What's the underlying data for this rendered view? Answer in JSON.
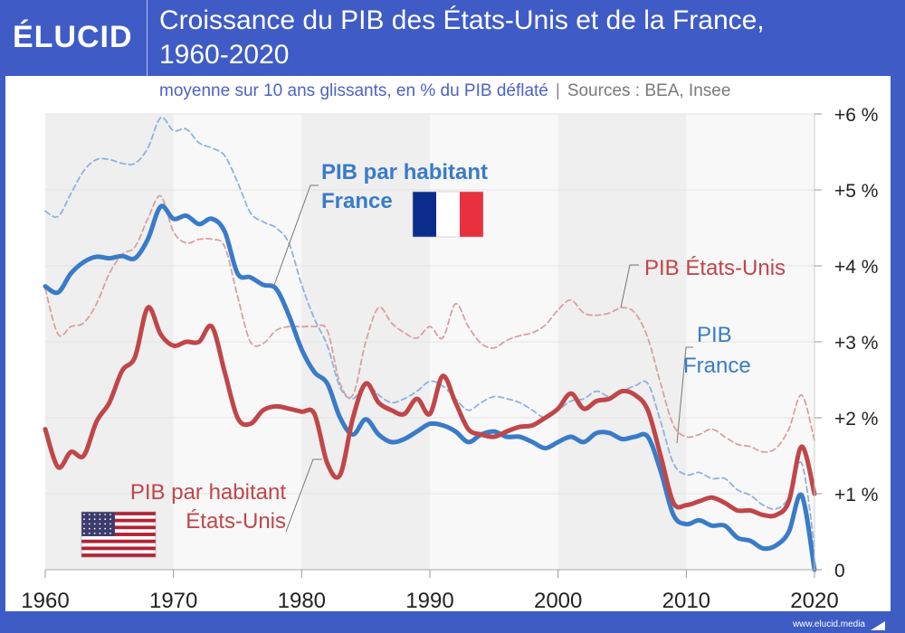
{
  "header": {
    "logo": "ÉLUCID",
    "title_line1": "Croissance du PIB des États-Unis et de la France,",
    "title_line2": "1960-2020",
    "subtitle": "moyenne sur 10 ans glissants,  en % du PIB déflaté",
    "separator": "|",
    "sources": "Sources : BEA, Insee"
  },
  "footer": {
    "url": "www.elucid.media"
  },
  "colors": {
    "france": "#3a7bc8",
    "usa": "#c0464a",
    "france_dashed": "#8eb2de",
    "usa_dashed": "#d9a0a0",
    "header_bg": "#3f5bc6"
  },
  "annotations": {
    "fr_per_capita": [
      "PIB par habitant",
      "France"
    ],
    "us_total": "PIB États-Unis",
    "fr_total": [
      "PIB",
      "France"
    ],
    "us_per_capita": [
      "PIB par habitant",
      "États-Unis"
    ]
  },
  "chart_data": {
    "type": "line",
    "title": "Croissance du PIB des États-Unis et de la France, 1960-2020",
    "subtitle": "moyenne sur 10 ans glissants, en % du PIB déflaté",
    "xlabel": "",
    "ylabel": "",
    "xlim": [
      1960,
      2020
    ],
    "ylim": [
      0,
      6
    ],
    "x_ticks": [
      "1960",
      "1970",
      "1980",
      "1990",
      "2000",
      "2010",
      "2020"
    ],
    "y_ticks": [
      "0",
      "+1 %",
      "+2 %",
      "+3 %",
      "+4 %",
      "+5 %",
      "+6 %"
    ],
    "y_tick_values": [
      0,
      1,
      2,
      3,
      4,
      5,
      6
    ],
    "y_axis_side": "right",
    "grid": true,
    "x": [
      1960,
      1961,
      1962,
      1963,
      1964,
      1965,
      1966,
      1967,
      1968,
      1969,
      1970,
      1971,
      1972,
      1973,
      1974,
      1975,
      1976,
      1977,
      1978,
      1979,
      1980,
      1981,
      1982,
      1983,
      1984,
      1985,
      1986,
      1987,
      1988,
      1989,
      1990,
      1991,
      1992,
      1993,
      1994,
      1995,
      1996,
      1997,
      1998,
      1999,
      2000,
      2001,
      2002,
      2003,
      2004,
      2005,
      2006,
      2007,
      2008,
      2009,
      2010,
      2011,
      2012,
      2013,
      2014,
      2015,
      2016,
      2017,
      2018,
      2019,
      2020
    ],
    "series": [
      {
        "name": "PIB France",
        "style": "dashed",
        "color": "#8eb2de",
        "values": [
          4.72,
          4.65,
          4.95,
          5.25,
          5.4,
          5.4,
          5.35,
          5.35,
          5.55,
          5.95,
          5.78,
          5.8,
          5.62,
          5.55,
          5.45,
          5.1,
          4.7,
          4.58,
          4.5,
          4.3,
          3.75,
          3.3,
          2.95,
          2.4,
          2.25,
          2.45,
          2.3,
          2.2,
          2.25,
          2.35,
          2.48,
          2.42,
          2.25,
          2.1,
          2.2,
          2.28,
          2.25,
          2.2,
          2.1,
          2.0,
          2.1,
          2.22,
          2.25,
          2.35,
          2.28,
          2.35,
          2.42,
          2.45,
          1.95,
          1.4,
          1.25,
          1.28,
          1.2,
          1.2,
          1.05,
          0.98,
          0.85,
          0.8,
          0.95,
          1.4,
          0.3
        ]
      },
      {
        "name": "PIB États-Unis",
        "style": "dashed",
        "color": "#d9a0a0",
        "values": [
          3.7,
          3.1,
          3.2,
          3.25,
          3.5,
          3.9,
          4.15,
          4.25,
          4.62,
          4.92,
          4.45,
          4.3,
          4.35,
          4.35,
          4.25,
          3.6,
          3.0,
          2.98,
          3.15,
          3.2,
          3.2,
          3.2,
          3.15,
          2.45,
          2.3,
          3.0,
          3.45,
          3.25,
          3.12,
          3.05,
          3.2,
          3.05,
          3.5,
          3.2,
          2.98,
          2.92,
          3.02,
          3.08,
          3.12,
          3.22,
          3.42,
          3.55,
          3.38,
          3.35,
          3.38,
          3.45,
          3.38,
          3.05,
          2.45,
          1.9,
          1.75,
          1.78,
          1.85,
          1.75,
          1.65,
          1.62,
          1.55,
          1.6,
          1.85,
          2.3,
          1.7
        ]
      },
      {
        "name": "PIB par habitant France",
        "style": "solid",
        "color": "#3a7bc8",
        "values": [
          3.73,
          3.65,
          3.9,
          4.05,
          4.12,
          4.1,
          4.13,
          4.1,
          4.35,
          4.78,
          4.62,
          4.66,
          4.55,
          4.62,
          4.45,
          3.9,
          3.85,
          3.75,
          3.7,
          3.35,
          2.9,
          2.6,
          2.45,
          2.0,
          1.78,
          1.98,
          1.78,
          1.68,
          1.72,
          1.82,
          1.92,
          1.9,
          1.82,
          1.68,
          1.78,
          1.82,
          1.75,
          1.75,
          1.68,
          1.6,
          1.68,
          1.75,
          1.68,
          1.8,
          1.8,
          1.72,
          1.75,
          1.75,
          1.3,
          0.72,
          0.6,
          0.65,
          0.58,
          0.58,
          0.42,
          0.38,
          0.28,
          0.32,
          0.5,
          0.98,
          0.0
        ]
      },
      {
        "name": "PIB par habitant États-Unis",
        "style": "solid",
        "color": "#c0464a",
        "values": [
          1.85,
          1.35,
          1.55,
          1.5,
          1.95,
          2.2,
          2.62,
          2.8,
          3.45,
          3.1,
          2.95,
          3.0,
          3.0,
          3.2,
          2.6,
          2.0,
          1.92,
          2.1,
          2.15,
          2.12,
          2.08,
          2.05,
          1.4,
          1.25,
          2.0,
          2.45,
          2.2,
          2.1,
          2.05,
          2.25,
          2.05,
          2.55,
          2.2,
          1.85,
          1.78,
          1.75,
          1.82,
          1.88,
          1.9,
          2.0,
          2.12,
          2.32,
          2.12,
          2.22,
          2.25,
          2.35,
          2.3,
          2.1,
          1.5,
          0.88,
          0.85,
          0.9,
          0.95,
          0.88,
          0.78,
          0.78,
          0.72,
          0.72,
          0.9,
          1.62,
          1.0
        ]
      }
    ],
    "legend": "inline-annotations",
    "background_bands": [
      "1960-1970",
      "1980-1990",
      "2000-2010"
    ]
  }
}
